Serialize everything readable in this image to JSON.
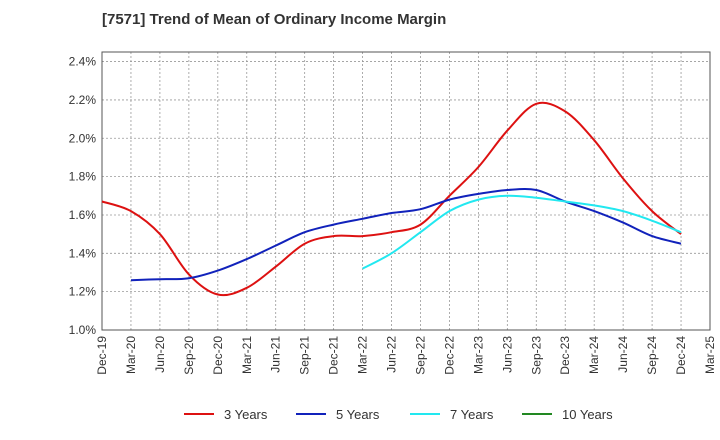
{
  "chart_data": {
    "type": "line",
    "title": "[7571]  Trend of Mean of Ordinary Income Margin",
    "xlabel": "",
    "ylabel": "",
    "x_ticks": [
      "Dec-19",
      "Mar-20",
      "Jun-20",
      "Sep-20",
      "Dec-20",
      "Mar-21",
      "Jun-21",
      "Sep-21",
      "Dec-21",
      "Mar-22",
      "Jun-22",
      "Sep-22",
      "Dec-22",
      "Mar-23",
      "Jun-23",
      "Sep-23",
      "Dec-23",
      "Mar-24",
      "Jun-24",
      "Sep-24",
      "Dec-24",
      "Mar-25"
    ],
    "y_ticks": [
      "1.0%",
      "1.2%",
      "1.4%",
      "1.6%",
      "1.8%",
      "2.0%",
      "2.2%",
      "2.4%"
    ],
    "ylim": [
      1.0,
      2.45
    ],
    "grid": true,
    "legend_position": "bottom",
    "series": [
      {
        "name": "3 Years",
        "color": "#dd1111",
        "points": [
          [
            "Dec-19",
            1.67
          ],
          [
            "Mar-20",
            1.62
          ],
          [
            "Jun-20",
            1.5
          ],
          [
            "Sep-20",
            1.29
          ],
          [
            "Dec-20",
            1.185
          ],
          [
            "Mar-21",
            1.22
          ],
          [
            "Jun-21",
            1.33
          ],
          [
            "Sep-21",
            1.45
          ],
          [
            "Dec-21",
            1.49
          ],
          [
            "Mar-22",
            1.49
          ],
          [
            "Jun-22",
            1.51
          ],
          [
            "Sep-22",
            1.55
          ],
          [
            "Dec-22",
            1.7
          ],
          [
            "Mar-23",
            1.85
          ],
          [
            "Jun-23",
            2.04
          ],
          [
            "Sep-23",
            2.18
          ],
          [
            "Dec-23",
            2.14
          ],
          [
            "Mar-24",
            1.99
          ],
          [
            "Jun-24",
            1.79
          ],
          [
            "Sep-24",
            1.62
          ],
          [
            "Dec-24",
            1.5
          ]
        ]
      },
      {
        "name": "5 Years",
        "color": "#1122bb",
        "points": [
          [
            "Mar-20",
            1.26
          ],
          [
            "Jun-20",
            1.265
          ],
          [
            "Sep-20",
            1.27
          ],
          [
            "Dec-20",
            1.31
          ],
          [
            "Mar-21",
            1.37
          ],
          [
            "Jun-21",
            1.44
          ],
          [
            "Sep-21",
            1.51
          ],
          [
            "Dec-21",
            1.55
          ],
          [
            "Mar-22",
            1.58
          ],
          [
            "Jun-22",
            1.61
          ],
          [
            "Sep-22",
            1.63
          ],
          [
            "Dec-22",
            1.68
          ],
          [
            "Mar-23",
            1.71
          ],
          [
            "Jun-23",
            1.73
          ],
          [
            "Sep-23",
            1.73
          ],
          [
            "Dec-23",
            1.67
          ],
          [
            "Mar-24",
            1.62
          ],
          [
            "Jun-24",
            1.56
          ],
          [
            "Sep-24",
            1.49
          ],
          [
            "Dec-24",
            1.45
          ]
        ]
      },
      {
        "name": "7 Years",
        "color": "#22e8f0",
        "points": [
          [
            "Mar-22",
            1.32
          ],
          [
            "Jun-22",
            1.4
          ],
          [
            "Sep-22",
            1.51
          ],
          [
            "Dec-22",
            1.62
          ],
          [
            "Mar-23",
            1.68
          ],
          [
            "Jun-23",
            1.7
          ],
          [
            "Sep-23",
            1.69
          ],
          [
            "Dec-23",
            1.67
          ],
          [
            "Mar-24",
            1.65
          ],
          [
            "Jun-24",
            1.62
          ],
          [
            "Sep-24",
            1.57
          ],
          [
            "Dec-24",
            1.51
          ]
        ]
      },
      {
        "name": "10 Years",
        "color": "#228822",
        "points": []
      }
    ]
  }
}
